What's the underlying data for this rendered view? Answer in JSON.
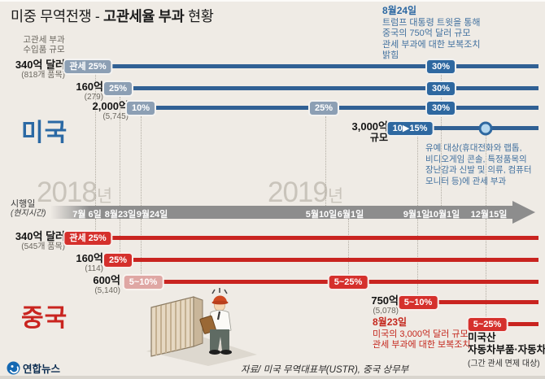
{
  "title": {
    "pre": "미중 무역전쟁 - ",
    "strong": "고관세율 부과",
    "post": " 현황"
  },
  "legend": {
    "lines": [
      "고관세 부과",
      "수입품 규모"
    ]
  },
  "publisher": "연합뉴스",
  "source": "자료/ 미국 무역대표부(USTR), 중국 상무부",
  "note_aug24": {
    "date": "8월24일",
    "lines": [
      "트럼프 대통령 트윗을 통해",
      "중국의 750억 달러 규모",
      "관세 부과에 대한 보복조치",
      "밝힘"
    ]
  },
  "note_exempt": {
    "lines": [
      "유예 대상(휴대전화와 랩톱,",
      "비디오게임 콘솔, 특정품목의",
      "장난감과 신발 및 의류, 컴퓨터",
      "모니터 등)에 관세 부과"
    ]
  },
  "note_aug23": {
    "date": "8월23일",
    "lines": [
      "미국의 3,000억 달러 규모",
      "관세 부과에 대한 보복조치"
    ]
  },
  "note_auto": {
    "lines": [
      "미국산",
      "자동차부품·자동차"
    ],
    "sub": "(그간 관세 면제 대상)"
  },
  "timeline": {
    "label1": "시행일",
    "label2": "(현지시간)",
    "years": [
      {
        "num": "2018",
        "suffix": "년"
      },
      {
        "num": "2019",
        "suffix": "년"
      }
    ],
    "dates": [
      "7월 6일",
      "8월23일",
      "9월24일",
      "5월10일",
      "6월1일",
      "9월1일",
      "10월1일",
      "12월15일"
    ]
  },
  "usa": {
    "name": "미국",
    "rows": [
      {
        "label": "340억 달러",
        "sub": "(818개 품목)",
        "badges": [
          {
            "text": "관세 25%",
            "tone": "muted"
          },
          {
            "text": "30%",
            "tone": "strong"
          }
        ]
      },
      {
        "label": "160억",
        "sub": "(279)",
        "badges": [
          {
            "text": "25%",
            "tone": "muted"
          },
          {
            "text": "30%",
            "tone": "strong"
          }
        ]
      },
      {
        "label": "2,000억",
        "sub": "(5,745)",
        "badges": [
          {
            "text": "10%",
            "tone": "muted"
          },
          {
            "text": "25%",
            "tone": "muted"
          },
          {
            "text": "30%",
            "tone": "strong"
          }
        ]
      },
      {
        "label": "3,000억",
        "sub": "규모",
        "badges": [
          {
            "text": "10▶15%",
            "tone": "strong"
          }
        ]
      }
    ]
  },
  "china": {
    "name": "중국",
    "rows": [
      {
        "label": "340억 달러",
        "sub": "(545개 품목)",
        "badges": [
          {
            "text": "관세 25%",
            "tone": "red"
          }
        ]
      },
      {
        "label": "160억",
        "sub": "(114)",
        "badges": [
          {
            "text": "25%",
            "tone": "red"
          }
        ]
      },
      {
        "label": "600억",
        "sub": "(5,140)",
        "badges": [
          {
            "text": "5~10%",
            "tone": "pink"
          },
          {
            "text": "5~25%",
            "tone": "red"
          }
        ]
      },
      {
        "label": "750억",
        "sub": "(5,078)",
        "badges": [
          {
            "text": "5~10%",
            "tone": "red"
          }
        ]
      },
      {
        "label": "",
        "sub": "",
        "badges": [
          {
            "text": "5~25%",
            "tone": "red"
          }
        ]
      }
    ]
  },
  "colors": {
    "bg": "#efebe5",
    "blue_bar": "#306094",
    "blue_badge": "#2e68a0",
    "blue_badge_muted": "#8c9fb4",
    "blue_text": "#42719f",
    "blue_name": "#2b69a4",
    "red_bar": "#c92420",
    "red_badge": "#d5302c",
    "pink_badge": "#dfa7a4",
    "red_name": "#c9241f",
    "timeline_gray": "#8d8d8d",
    "year_gray": "#c9c4bb"
  },
  "chart_data": {
    "type": "bar",
    "title": "미중 무역전쟁 - 고관세율 부과 현황",
    "x_axis": {
      "label": "시행일(현지시간)",
      "sections": [
        "2018년",
        "2019년"
      ],
      "ticks": [
        "7월 6일",
        "8월23일",
        "9월24일",
        "5월10일",
        "6월1일",
        "9월1일",
        "10월1일",
        "12월15일"
      ]
    },
    "unit_note": "고관세 부과 수입품 규모",
    "series": [
      {
        "country": "미국",
        "scale": "340억 달러",
        "items": "818개 품목",
        "events": [
          {
            "date": "2018년 7월 6일",
            "rate": "관세 25%"
          },
          {
            "date": "2019년 10월1일",
            "rate": "30%"
          }
        ]
      },
      {
        "country": "미국",
        "scale": "160억",
        "items": "279",
        "events": [
          {
            "date": "2018년 8월23일",
            "rate": "25%"
          },
          {
            "date": "2019년 10월1일",
            "rate": "30%"
          }
        ]
      },
      {
        "country": "미국",
        "scale": "2,000억",
        "items": "5,745",
        "events": [
          {
            "date": "2018년 9월24일",
            "rate": "10%"
          },
          {
            "date": "2019년 5월10일",
            "rate": "25%"
          },
          {
            "date": "2019년 10월1일",
            "rate": "30%"
          }
        ]
      },
      {
        "country": "미국",
        "scale": "3,000억 규모",
        "items": "",
        "events": [
          {
            "date": "2019년 9월1일",
            "rate": "10▶15%"
          },
          {
            "date": "2019년 12월15일",
            "marker": "유예 대상(휴대전화와 랩톱, 비디오게임 콘솔, 특정품목의 장난감과 신발 및 의류, 컴퓨터 모니터 등)에 관세 부과"
          }
        ]
      },
      {
        "country": "중국",
        "scale": "340억 달러",
        "items": "545개 품목",
        "events": [
          {
            "date": "2018년 7월 6일",
            "rate": "관세 25%"
          }
        ]
      },
      {
        "country": "중국",
        "scale": "160억",
        "items": "114",
        "events": [
          {
            "date": "2018년 8월23일",
            "rate": "25%"
          }
        ]
      },
      {
        "country": "중국",
        "scale": "600억",
        "items": "5,140",
        "events": [
          {
            "date": "2018년 9월24일",
            "rate": "5~10%"
          },
          {
            "date": "2019년 6월1일",
            "rate": "5~25%"
          }
        ]
      },
      {
        "country": "중국",
        "scale": "750억",
        "items": "5,078",
        "events": [
          {
            "date": "2019년 9월1일",
            "rate": "5~10%"
          }
        ]
      },
      {
        "country": "중국",
        "scale": "미국산 자동차부품·자동차",
        "items": "그간 관세 면제 대상",
        "events": [
          {
            "date": "2019년 12월15일",
            "rate": "5~25%"
          }
        ]
      }
    ]
  }
}
